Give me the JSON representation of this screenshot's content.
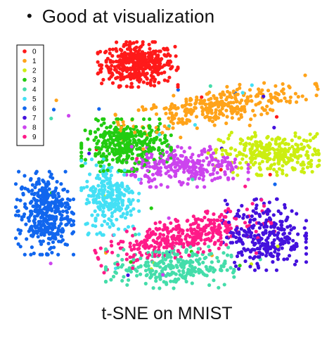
{
  "slide": {
    "bullet": "Good at visualization",
    "caption": "t-SNE on MNIST"
  },
  "chart_data": {
    "type": "scatter",
    "title": "",
    "xlabel": "",
    "ylabel": "",
    "grid": false,
    "axes_visible": false,
    "legend_placement": "top-left",
    "legend": [
      "0",
      "1",
      "2",
      "3",
      "4",
      "5",
      "6",
      "7",
      "8",
      "9"
    ],
    "series": [
      {
        "name": "0",
        "color": "#ff1a1a",
        "cluster": {
          "cx": -2.0,
          "cy": 10.8,
          "sx": 1.25,
          "sy": 0.95,
          "n": 420
        }
      },
      {
        "name": "1",
        "color": "#ffa31a",
        "cluster": {
          "cx": 3.5,
          "cy": 6.9,
          "sx": 3.2,
          "sy": 0.75,
          "n": 330,
          "tilt": 0.22
        }
      },
      {
        "name": "2",
        "color": "#ccee11",
        "cluster": {
          "cx": 7.3,
          "cy": 2.5,
          "sx": 1.8,
          "sy": 0.9,
          "n": 300
        }
      },
      {
        "name": "3",
        "color": "#22cc11",
        "cluster": {
          "cx": -2.8,
          "cy": 3.3,
          "sx": 1.4,
          "sy": 1.1,
          "n": 360
        }
      },
      {
        "name": "4",
        "color": "#44ddaa",
        "cluster": {
          "cx": 0.2,
          "cy": -8.0,
          "sx": 2.0,
          "sy": 0.9,
          "n": 260
        }
      },
      {
        "name": "5",
        "color": "#44e0f5",
        "cluster": {
          "cx": -3.9,
          "cy": -1.5,
          "sx": 0.9,
          "sy": 1.6,
          "n": 240
        }
      },
      {
        "name": "6",
        "color": "#1166ee",
        "cluster": {
          "cx": -8.4,
          "cy": -3.0,
          "sx": 0.9,
          "sy": 1.75,
          "n": 380
        }
      },
      {
        "name": "7",
        "color": "#4411dd",
        "cluster": {
          "cx": 6.7,
          "cy": -5.0,
          "sx": 1.3,
          "sy": 1.5,
          "n": 280
        }
      },
      {
        "name": "8",
        "color": "#cc44ee",
        "cluster": {
          "cx": 1.4,
          "cy": 1.3,
          "sx": 1.9,
          "sy": 0.85,
          "n": 270
        }
      },
      {
        "name": "9",
        "color": "#ff1a88",
        "cluster": {
          "cx": 1.1,
          "cy": -5.2,
          "sx": 2.8,
          "sy": 0.8,
          "n": 360,
          "tilt": 0.3
        }
      }
    ],
    "xlim": [
      -10.5,
      10.5
    ],
    "ylim": [
      -10.5,
      13.0
    ]
  }
}
